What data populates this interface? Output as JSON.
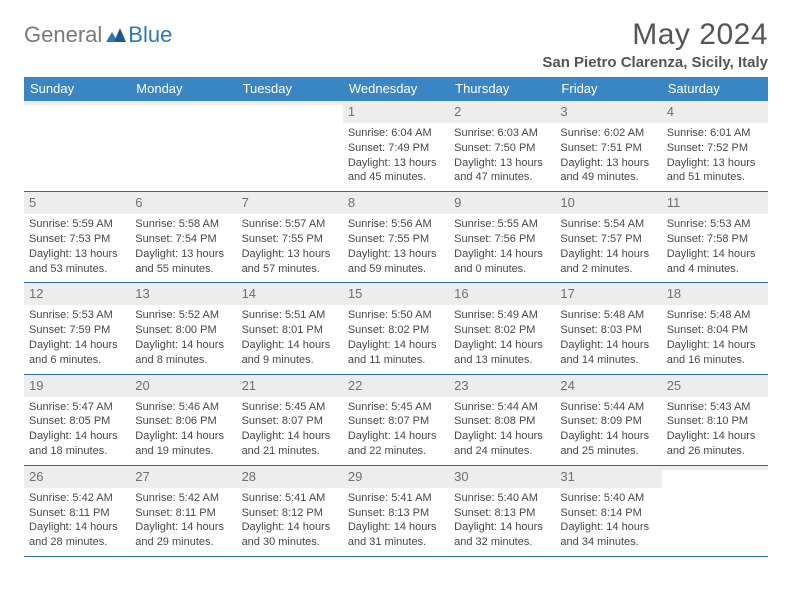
{
  "logo": {
    "text_left": "General",
    "text_right": "Blue"
  },
  "title": "May 2024",
  "location": "San Pietro Clarenza, Sicily, Italy",
  "colors": {
    "header_bg": "#3a86c5",
    "header_text": "#ffffff",
    "daynum_bg": "#ededed",
    "daynum_text": "#707070",
    "body_text": "#484848",
    "divider": "#2b6ca3",
    "logo_gray": "#7a7a7a",
    "logo_blue": "#2f78b7"
  },
  "weekdays": [
    "Sunday",
    "Monday",
    "Tuesday",
    "Wednesday",
    "Thursday",
    "Friday",
    "Saturday"
  ],
  "weeks": [
    [
      {
        "empty": true
      },
      {
        "empty": true
      },
      {
        "empty": true
      },
      {
        "num": "1",
        "l1": "Sunrise: 6:04 AM",
        "l2": "Sunset: 7:49 PM",
        "l3": "Daylight: 13 hours",
        "l4": "and 45 minutes."
      },
      {
        "num": "2",
        "l1": "Sunrise: 6:03 AM",
        "l2": "Sunset: 7:50 PM",
        "l3": "Daylight: 13 hours",
        "l4": "and 47 minutes."
      },
      {
        "num": "3",
        "l1": "Sunrise: 6:02 AM",
        "l2": "Sunset: 7:51 PM",
        "l3": "Daylight: 13 hours",
        "l4": "and 49 minutes."
      },
      {
        "num": "4",
        "l1": "Sunrise: 6:01 AM",
        "l2": "Sunset: 7:52 PM",
        "l3": "Daylight: 13 hours",
        "l4": "and 51 minutes."
      }
    ],
    [
      {
        "num": "5",
        "l1": "Sunrise: 5:59 AM",
        "l2": "Sunset: 7:53 PM",
        "l3": "Daylight: 13 hours",
        "l4": "and 53 minutes."
      },
      {
        "num": "6",
        "l1": "Sunrise: 5:58 AM",
        "l2": "Sunset: 7:54 PM",
        "l3": "Daylight: 13 hours",
        "l4": "and 55 minutes."
      },
      {
        "num": "7",
        "l1": "Sunrise: 5:57 AM",
        "l2": "Sunset: 7:55 PM",
        "l3": "Daylight: 13 hours",
        "l4": "and 57 minutes."
      },
      {
        "num": "8",
        "l1": "Sunrise: 5:56 AM",
        "l2": "Sunset: 7:55 PM",
        "l3": "Daylight: 13 hours",
        "l4": "and 59 minutes."
      },
      {
        "num": "9",
        "l1": "Sunrise: 5:55 AM",
        "l2": "Sunset: 7:56 PM",
        "l3": "Daylight: 14 hours",
        "l4": "and 0 minutes."
      },
      {
        "num": "10",
        "l1": "Sunrise: 5:54 AM",
        "l2": "Sunset: 7:57 PM",
        "l3": "Daylight: 14 hours",
        "l4": "and 2 minutes."
      },
      {
        "num": "11",
        "l1": "Sunrise: 5:53 AM",
        "l2": "Sunset: 7:58 PM",
        "l3": "Daylight: 14 hours",
        "l4": "and 4 minutes."
      }
    ],
    [
      {
        "num": "12",
        "l1": "Sunrise: 5:53 AM",
        "l2": "Sunset: 7:59 PM",
        "l3": "Daylight: 14 hours",
        "l4": "and 6 minutes."
      },
      {
        "num": "13",
        "l1": "Sunrise: 5:52 AM",
        "l2": "Sunset: 8:00 PM",
        "l3": "Daylight: 14 hours",
        "l4": "and 8 minutes."
      },
      {
        "num": "14",
        "l1": "Sunrise: 5:51 AM",
        "l2": "Sunset: 8:01 PM",
        "l3": "Daylight: 14 hours",
        "l4": "and 9 minutes."
      },
      {
        "num": "15",
        "l1": "Sunrise: 5:50 AM",
        "l2": "Sunset: 8:02 PM",
        "l3": "Daylight: 14 hours",
        "l4": "and 11 minutes."
      },
      {
        "num": "16",
        "l1": "Sunrise: 5:49 AM",
        "l2": "Sunset: 8:02 PM",
        "l3": "Daylight: 14 hours",
        "l4": "and 13 minutes."
      },
      {
        "num": "17",
        "l1": "Sunrise: 5:48 AM",
        "l2": "Sunset: 8:03 PM",
        "l3": "Daylight: 14 hours",
        "l4": "and 14 minutes."
      },
      {
        "num": "18",
        "l1": "Sunrise: 5:48 AM",
        "l2": "Sunset: 8:04 PM",
        "l3": "Daylight: 14 hours",
        "l4": "and 16 minutes."
      }
    ],
    [
      {
        "num": "19",
        "l1": "Sunrise: 5:47 AM",
        "l2": "Sunset: 8:05 PM",
        "l3": "Daylight: 14 hours",
        "l4": "and 18 minutes."
      },
      {
        "num": "20",
        "l1": "Sunrise: 5:46 AM",
        "l2": "Sunset: 8:06 PM",
        "l3": "Daylight: 14 hours",
        "l4": "and 19 minutes."
      },
      {
        "num": "21",
        "l1": "Sunrise: 5:45 AM",
        "l2": "Sunset: 8:07 PM",
        "l3": "Daylight: 14 hours",
        "l4": "and 21 minutes."
      },
      {
        "num": "22",
        "l1": "Sunrise: 5:45 AM",
        "l2": "Sunset: 8:07 PM",
        "l3": "Daylight: 14 hours",
        "l4": "and 22 minutes."
      },
      {
        "num": "23",
        "l1": "Sunrise: 5:44 AM",
        "l2": "Sunset: 8:08 PM",
        "l3": "Daylight: 14 hours",
        "l4": "and 24 minutes."
      },
      {
        "num": "24",
        "l1": "Sunrise: 5:44 AM",
        "l2": "Sunset: 8:09 PM",
        "l3": "Daylight: 14 hours",
        "l4": "and 25 minutes."
      },
      {
        "num": "25",
        "l1": "Sunrise: 5:43 AM",
        "l2": "Sunset: 8:10 PM",
        "l3": "Daylight: 14 hours",
        "l4": "and 26 minutes."
      }
    ],
    [
      {
        "num": "26",
        "l1": "Sunrise: 5:42 AM",
        "l2": "Sunset: 8:11 PM",
        "l3": "Daylight: 14 hours",
        "l4": "and 28 minutes."
      },
      {
        "num": "27",
        "l1": "Sunrise: 5:42 AM",
        "l2": "Sunset: 8:11 PM",
        "l3": "Daylight: 14 hours",
        "l4": "and 29 minutes."
      },
      {
        "num": "28",
        "l1": "Sunrise: 5:41 AM",
        "l2": "Sunset: 8:12 PM",
        "l3": "Daylight: 14 hours",
        "l4": "and 30 minutes."
      },
      {
        "num": "29",
        "l1": "Sunrise: 5:41 AM",
        "l2": "Sunset: 8:13 PM",
        "l3": "Daylight: 14 hours",
        "l4": "and 31 minutes."
      },
      {
        "num": "30",
        "l1": "Sunrise: 5:40 AM",
        "l2": "Sunset: 8:13 PM",
        "l3": "Daylight: 14 hours",
        "l4": "and 32 minutes."
      },
      {
        "num": "31",
        "l1": "Sunrise: 5:40 AM",
        "l2": "Sunset: 8:14 PM",
        "l3": "Daylight: 14 hours",
        "l4": "and 34 minutes."
      },
      {
        "empty": true
      }
    ]
  ]
}
